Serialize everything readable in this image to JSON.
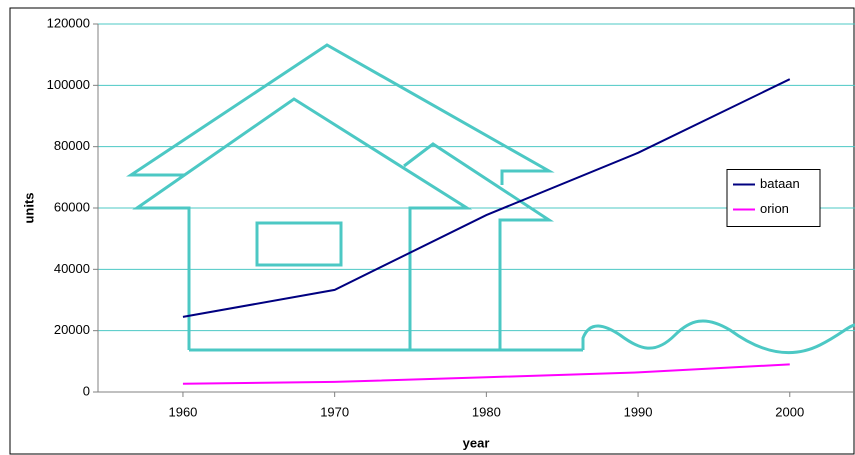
{
  "chart_data": {
    "type": "line",
    "x_label": "year",
    "y_label": "units",
    "x": [
      1960,
      1970,
      1980,
      1990,
      2000
    ],
    "series": [
      {
        "name": "bataan",
        "color": "#000080",
        "values": [
          24500,
          33300,
          57700,
          78000,
          102000
        ]
      },
      {
        "name": "orion",
        "color": "#ff00ff",
        "values": [
          2700,
          3300,
          4800,
          6400,
          9000
        ]
      }
    ],
    "xlim": [
      1954.4,
      2004.3
    ],
    "xticks": [
      1960,
      1970,
      1980,
      1990,
      2000
    ],
    "ylim": [
      0,
      120000
    ],
    "yticks": [
      0,
      20000,
      40000,
      60000,
      80000,
      100000,
      120000
    ],
    "grid": true,
    "legend": "right"
  }
}
